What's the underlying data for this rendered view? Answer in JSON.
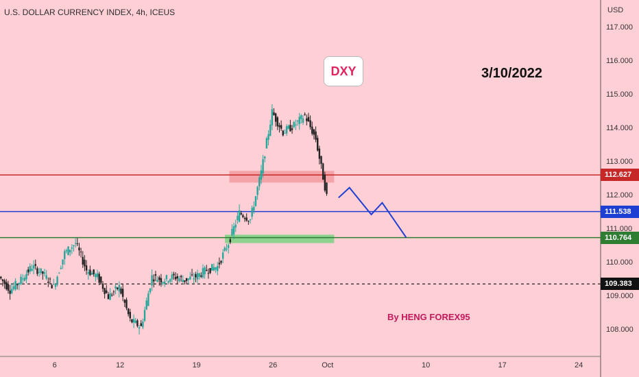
{
  "header": {
    "title": "U.S. DOLLAR CURRENCY INDEX, 4h, ICEUS"
  },
  "annotations": {
    "tag": "DXY",
    "date": "3/10/2022",
    "author": "By HENG FOREX95"
  },
  "axis": {
    "currency": "USD"
  },
  "chart_data": {
    "type": "candlestick",
    "title": "U.S. DOLLAR CURRENCY INDEX, 4h, ICEUS",
    "ylim": [
      107.6,
      117.5
    ],
    "y_ticks": [
      "117.000",
      "116.000",
      "115.000",
      "114.000",
      "113.000",
      "112.000",
      "111.000",
      "110.000",
      "109.000",
      "108.000"
    ],
    "x_ticks": [
      "6",
      "12",
      "19",
      "26",
      "Oct",
      "10",
      "17",
      "24"
    ],
    "x_tick_days": [
      6,
      12,
      19,
      26,
      31,
      40,
      47,
      54
    ],
    "x_range_days": [
      1,
      56
    ],
    "price_badges": [
      {
        "value": "112.627",
        "color": "#c62828"
      },
      {
        "value": "111.538",
        "color": "#1e3fd1"
      },
      {
        "value": "110.764",
        "color": "#2e7d32"
      },
      {
        "value": "109.383",
        "color": "#111111"
      }
    ],
    "horizontal_lines": [
      {
        "value": 112.627,
        "color": "#c62828",
        "style": "solid"
      },
      {
        "value": 111.538,
        "color": "#1e3fd1",
        "style": "solid"
      },
      {
        "value": 110.764,
        "color": "#2e7d32",
        "style": "solid"
      },
      {
        "value": 109.383,
        "color": "#222222",
        "style": "dashed"
      }
    ],
    "zones": [
      {
        "day_from": 22.0,
        "day_to": 31.6,
        "low": 112.4,
        "high": 112.75,
        "color": "#f4a3a8"
      },
      {
        "day_from": 21.6,
        "day_to": 31.6,
        "low": 110.6,
        "high": 110.85,
        "color": "#8fd18e"
      }
    ],
    "projection": [
      [
        32.0,
        111.95
      ],
      [
        33.0,
        112.25
      ],
      [
        35.0,
        111.45
      ],
      [
        36.0,
        111.8
      ],
      [
        38.2,
        110.764
      ]
    ],
    "candles_close_path": [
      [
        1.0,
        109.6
      ],
      [
        2.0,
        109.2
      ],
      [
        3.0,
        109.5
      ],
      [
        4.0,
        109.9
      ],
      [
        5.0,
        109.7
      ],
      [
        6.0,
        109.3
      ],
      [
        7.0,
        110.3
      ],
      [
        8.0,
        110.6
      ],
      [
        9.0,
        109.8
      ],
      [
        10.0,
        109.6
      ],
      [
        11.0,
        109.0
      ],
      [
        12.0,
        109.3
      ],
      [
        13.0,
        108.3
      ],
      [
        14.0,
        108.1
      ],
      [
        15.0,
        109.6
      ],
      [
        16.0,
        109.5
      ],
      [
        17.0,
        109.6
      ],
      [
        18.0,
        109.5
      ],
      [
        19.0,
        109.6
      ],
      [
        20.0,
        109.8
      ],
      [
        21.0,
        109.9
      ],
      [
        22.0,
        110.6
      ],
      [
        23.0,
        111.5
      ],
      [
        24.0,
        111.3
      ],
      [
        25.0,
        112.7
      ],
      [
        26.0,
        114.5
      ],
      [
        27.0,
        113.9
      ],
      [
        28.0,
        114.1
      ],
      [
        29.0,
        114.4
      ],
      [
        30.0,
        113.7
      ],
      [
        31.0,
        112.0
      ]
    ],
    "candle_colors": {
      "up": "#26a69a",
      "down": "#222222"
    }
  }
}
